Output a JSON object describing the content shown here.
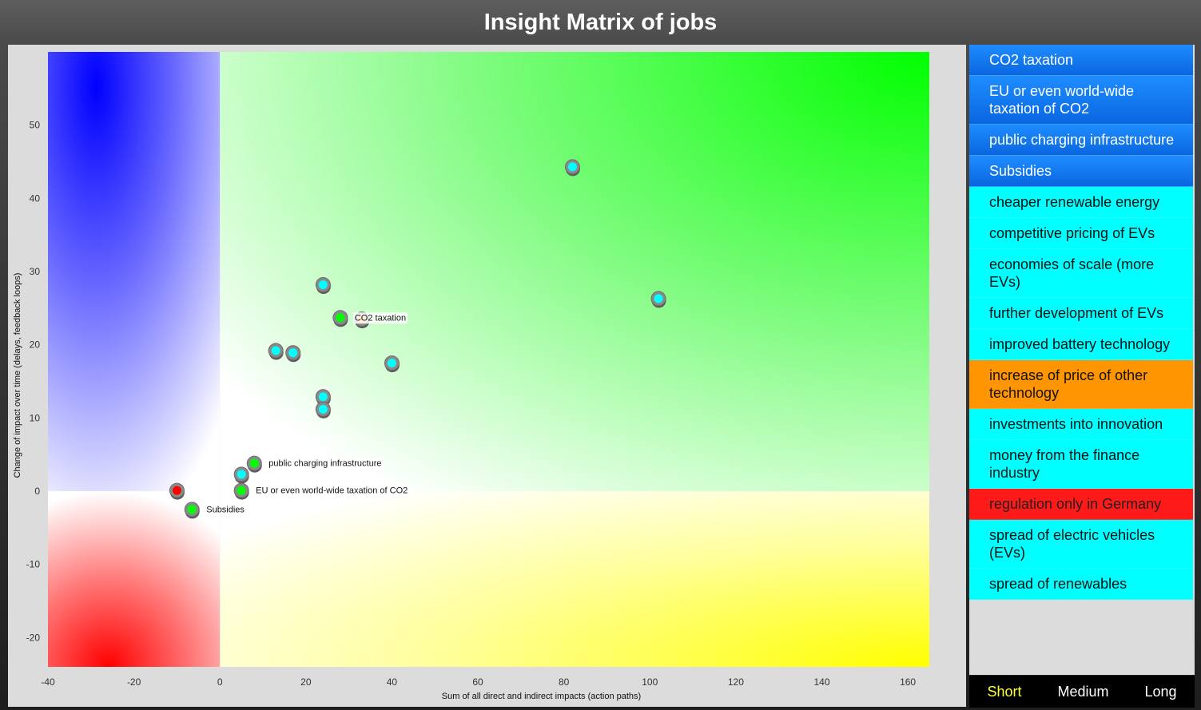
{
  "title": "Insight Matrix of jobs",
  "colors": {
    "lever": "#1e7fff",
    "cyan": "#00ffff",
    "orange": "#ff9500",
    "red": "#ff1a1a",
    "point_green": "#00ff00",
    "point_cyan": "#00ffff",
    "point_red": "#ff0000",
    "active_tab": "#ffff33"
  },
  "legend": {
    "items": [
      {
        "label": "CO2 taxation",
        "style": "lever"
      },
      {
        "label": "EU or even world-wide taxation of CO2",
        "style": "lever"
      },
      {
        "label": "public charging infrastructure",
        "style": "lever"
      },
      {
        "label": "Subsidies",
        "style": "lever"
      },
      {
        "label": "cheaper renewable energy",
        "style": "cyan"
      },
      {
        "label": "competitive pricing of EVs",
        "style": "cyan"
      },
      {
        "label": "economies of scale (more EVs)",
        "style": "cyan"
      },
      {
        "label": "further development of EVs",
        "style": "cyan"
      },
      {
        "label": "improved battery technology",
        "style": "cyan"
      },
      {
        "label": "increase of price of other technology",
        "style": "orange"
      },
      {
        "label": "investments into innovation",
        "style": "cyan"
      },
      {
        "label": "money from the finance industry",
        "style": "cyan"
      },
      {
        "label": "regulation only in Germany",
        "style": "red"
      },
      {
        "label": "spread of electric vehicles (EVs)",
        "style": "cyan"
      },
      {
        "label": "spread of renewables",
        "style": "cyan"
      }
    ]
  },
  "time_tabs": {
    "items": [
      "Short",
      "Medium",
      "Long"
    ],
    "active": "Short"
  },
  "chart_data": {
    "type": "scatter",
    "xlabel": "Sum of all direct and indirect impacts (action paths)",
    "ylabel": "Change of impact over time (delays, feedback loops)",
    "xlim": [
      -40,
      165
    ],
    "ylim": [
      -24,
      60
    ],
    "xticks": [
      -40,
      -20,
      0,
      20,
      40,
      60,
      80,
      100,
      120,
      140,
      160
    ],
    "yticks": [
      -20,
      -10,
      0,
      10,
      20,
      30,
      40,
      50
    ],
    "grid": false,
    "quadrants": {
      "top_left": "blue",
      "top_right": "green",
      "bottom_left": "red",
      "bottom_right": "yellow"
    },
    "points": [
      {
        "x": 82,
        "y": 44.3,
        "color": "cyan",
        "label": ""
      },
      {
        "x": 102,
        "y": 26.3,
        "color": "cyan",
        "label": ""
      },
      {
        "x": 24,
        "y": 28.2,
        "color": "cyan",
        "label": ""
      },
      {
        "x": 33,
        "y": 23.5,
        "color": "orange",
        "label": ""
      },
      {
        "x": 28,
        "y": 23.7,
        "color": "green",
        "label": "CO2 taxation"
      },
      {
        "x": 13,
        "y": 19.2,
        "color": "cyan",
        "label": ""
      },
      {
        "x": 17,
        "y": 18.9,
        "color": "cyan",
        "label": ""
      },
      {
        "x": 40,
        "y": 17.5,
        "color": "cyan",
        "label": ""
      },
      {
        "x": 24,
        "y": 12.9,
        "color": "cyan",
        "label": ""
      },
      {
        "x": 24,
        "y": 11.2,
        "color": "cyan",
        "label": ""
      },
      {
        "x": 8,
        "y": 3.8,
        "color": "green",
        "label": "public charging infrastructure"
      },
      {
        "x": 5,
        "y": 2.3,
        "color": "cyan",
        "label": ""
      },
      {
        "x": 5,
        "y": 0.1,
        "color": "green",
        "label": "EU or even world-wide taxation of CO2"
      },
      {
        "x": -10,
        "y": 0.1,
        "color": "red",
        "label": ""
      },
      {
        "x": -6.5,
        "y": -2.5,
        "color": "green",
        "label": "Subsidies"
      }
    ]
  }
}
